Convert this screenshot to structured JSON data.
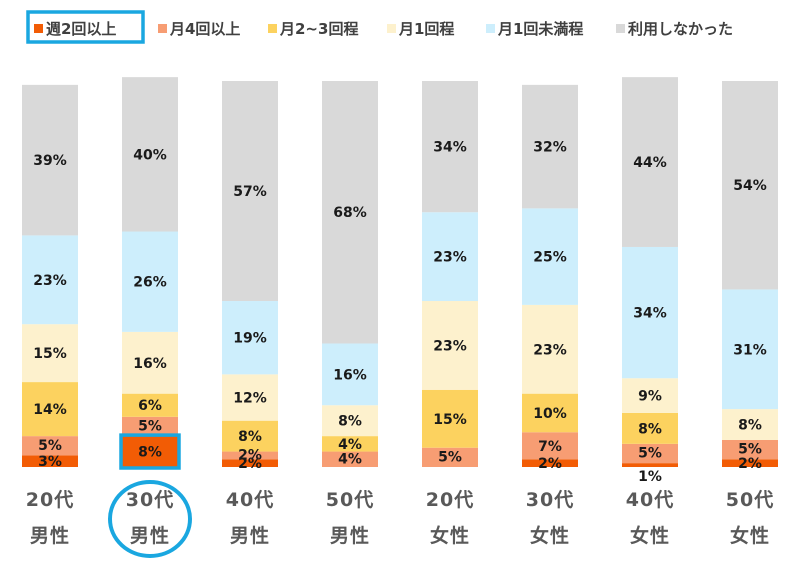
{
  "chart_data": {
    "type": "bar",
    "stacked": true,
    "percent": true,
    "categories": [
      [
        "20代",
        "男性"
      ],
      [
        "30代",
        "男性"
      ],
      [
        "40代",
        "男性"
      ],
      [
        "50代",
        "男性"
      ],
      [
        "20代",
        "女性"
      ],
      [
        "30代",
        "女性"
      ],
      [
        "40代",
        "女性"
      ],
      [
        "50代",
        "女性"
      ]
    ],
    "series": [
      {
        "name": "週2回以上",
        "color": "#f25c05",
        "values": [
          3,
          8,
          2,
          0,
          0,
          2,
          1,
          2
        ],
        "labels": [
          "3%",
          "8%",
          "2%",
          "",
          "",
          "2%",
          "1%",
          "2%"
        ]
      },
      {
        "name": "月4回以上",
        "color": "#f79d73",
        "values": [
          5,
          5,
          2,
          4,
          5,
          7,
          5,
          5
        ],
        "labels": [
          "5%",
          "5%",
          "2%",
          "4%",
          "5%",
          "7%",
          "5%",
          "5%"
        ]
      },
      {
        "name": "月2~3回程",
        "color": "#fcd25f",
        "values": [
          14,
          6,
          8,
          4,
          15,
          10,
          8,
          0
        ],
        "labels": [
          "14%",
          "6%",
          "8%",
          "4%",
          "15%",
          "10%",
          "8%",
          ""
        ]
      },
      {
        "name": "月1回程",
        "color": "#fdf1cd",
        "values": [
          15,
          16,
          12,
          8,
          23,
          23,
          9,
          8
        ],
        "labels": [
          "15%",
          "16%",
          "12%",
          "8%",
          "23%",
          "23%",
          "9%",
          "8%"
        ]
      },
      {
        "name": "月1回未満程",
        "color": "#cdeefc",
        "values": [
          23,
          26,
          19,
          16,
          23,
          25,
          34,
          31
        ],
        "labels": [
          "23%",
          "26%",
          "19%",
          "16%",
          "23%",
          "25%",
          "34%",
          "31%"
        ]
      },
      {
        "name": "利用しなかった",
        "color": "#d9d9d9",
        "values": [
          39,
          40,
          57,
          68,
          34,
          32,
          44,
          54
        ],
        "labels": [
          "39%",
          "40%",
          "57%",
          "68%",
          "34%",
          "32%",
          "44%",
          "54%"
        ]
      }
    ],
    "ylim": [
      0,
      100
    ],
    "legend": "top",
    "grid": false,
    "highlight": {
      "category_index": 1,
      "series_index": 0,
      "color": "#1aa7e0"
    }
  }
}
